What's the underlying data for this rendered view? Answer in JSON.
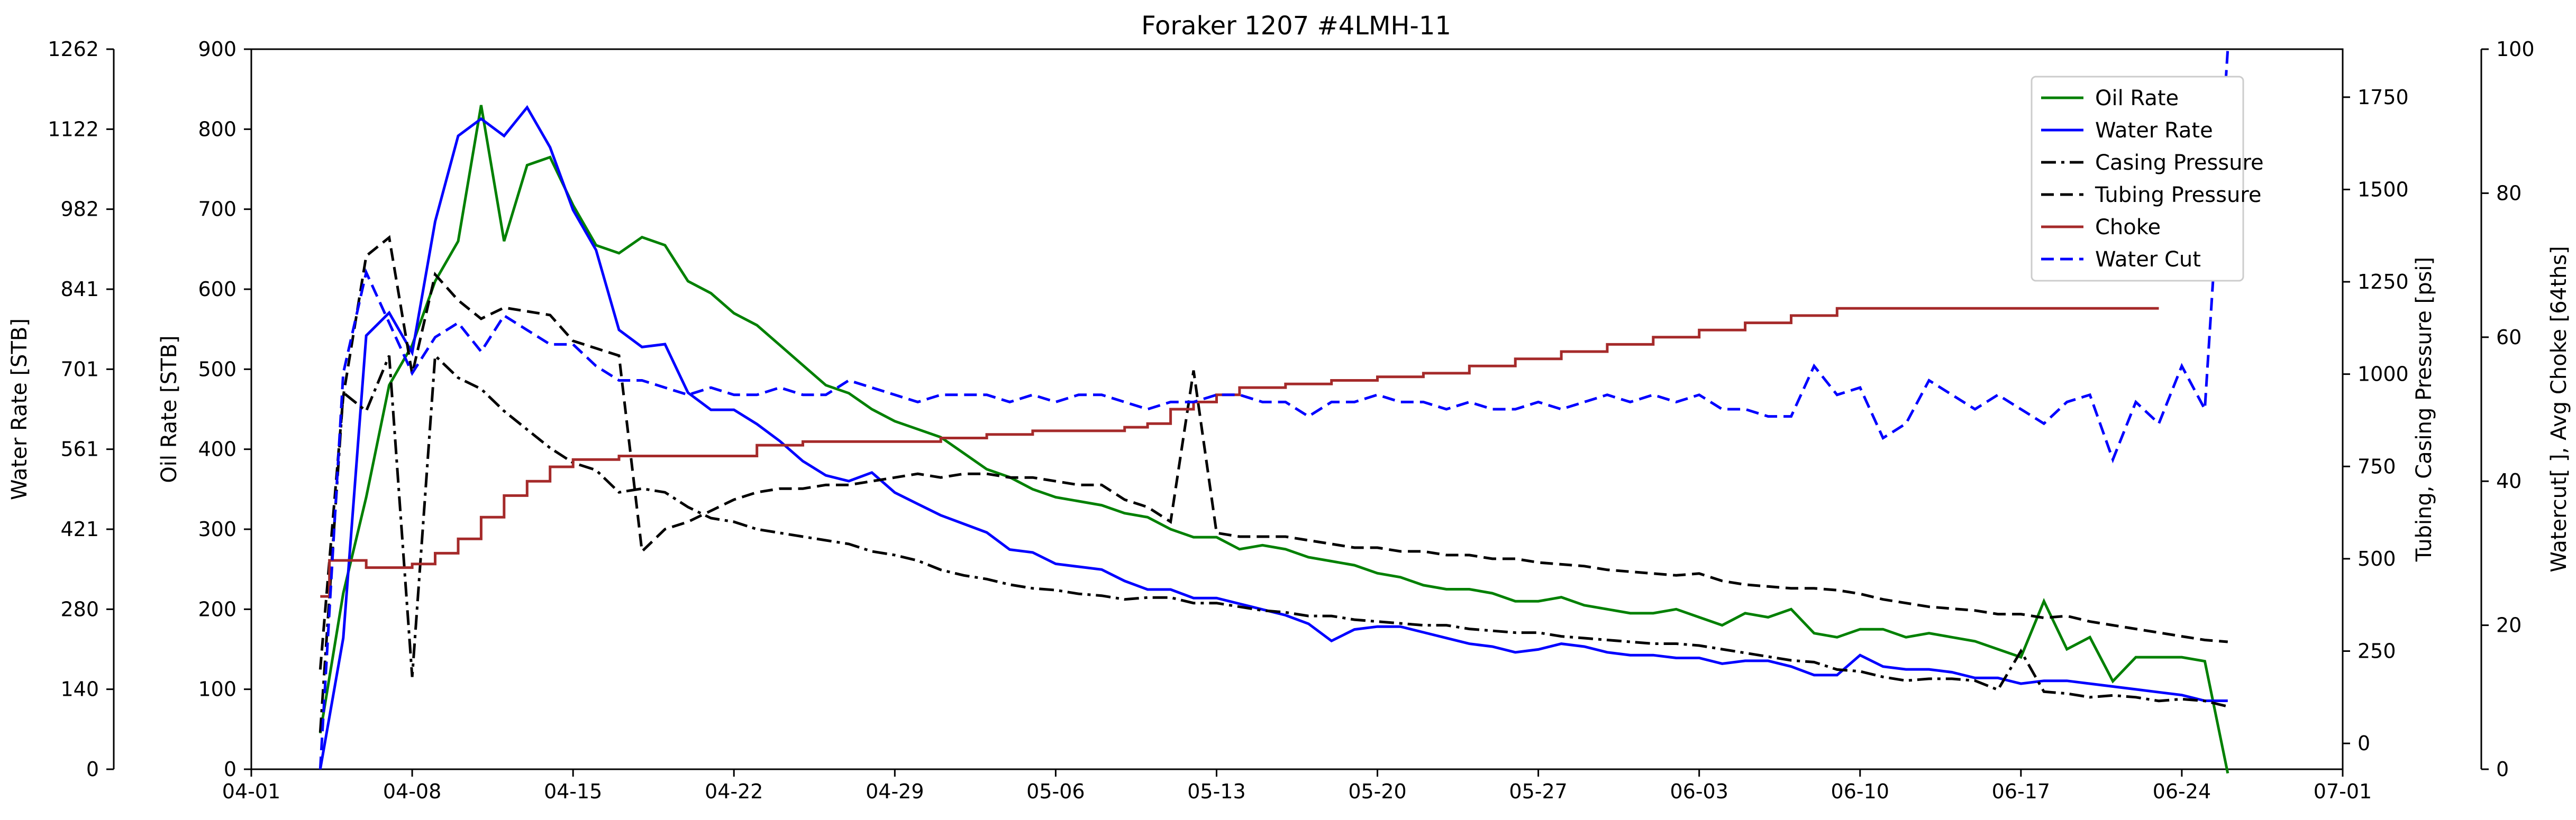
{
  "chart_data": {
    "type": "line",
    "title": "Foraker 1207 #4LMH-11",
    "x_axis": {
      "ticks": [
        "04-01",
        "04-08",
        "04-15",
        "04-22",
        "04-29",
        "05-06",
        "05-13",
        "05-20",
        "05-27",
        "06-03",
        "06-10",
        "06-17",
        "06-24",
        "07-01"
      ],
      "range_days": [
        -3,
        88
      ],
      "start_date": "2019-04-04"
    },
    "y_axes": [
      {
        "id": "water",
        "label": "Water Rate [STB]",
        "range": [
          0,
          1262
        ],
        "ticks": [
          "0",
          "140",
          "280",
          "421",
          "561",
          "701",
          "841",
          "982",
          "1122",
          "1262"
        ]
      },
      {
        "id": "oil",
        "label": "Oil Rate [STB]",
        "range": [
          0,
          900
        ],
        "ticks": [
          "0",
          "100",
          "200",
          "300",
          "400",
          "500",
          "600",
          "700",
          "800",
          "900"
        ]
      },
      {
        "id": "pressure",
        "label": "Tubing, Casing Pressure [psi]",
        "range": [
          -70,
          1880
        ],
        "ticks": [
          "0",
          "250",
          "500",
          "750",
          "1000",
          "1250",
          "1500",
          "1750"
        ]
      },
      {
        "id": "choke",
        "label": "Watercut[ ], Avg Choke [64ths]",
        "range": [
          0,
          100
        ],
        "ticks": [
          "0",
          "20",
          "40",
          "60",
          "80",
          "100"
        ]
      }
    ],
    "legend": {
      "placement": "top-right"
    },
    "grid": false,
    "series": [
      {
        "name": "Oil Rate",
        "axis": "oil",
        "color": "#008000",
        "dash": "solid",
        "x": [
          0,
          1,
          2,
          3,
          4,
          5,
          6,
          7,
          8,
          9,
          10,
          11,
          12,
          13,
          14,
          15,
          16,
          17,
          18,
          19,
          20,
          21,
          22,
          23,
          24,
          25,
          26,
          27,
          28,
          29,
          30,
          31,
          32,
          33,
          34,
          35,
          36,
          37,
          38,
          39,
          40,
          41,
          42,
          43,
          44,
          45,
          46,
          47,
          48,
          49,
          50,
          51,
          52,
          53,
          54,
          55,
          56,
          57,
          58,
          59,
          60,
          61,
          62,
          63,
          64,
          65,
          66,
          67,
          68,
          69,
          70,
          71,
          72,
          73,
          74,
          75,
          76,
          77,
          78,
          79,
          80,
          81,
          82,
          83
        ],
        "y": [
          45,
          220,
          340,
          480,
          530,
          610,
          660,
          830,
          660,
          755,
          765,
          705,
          655,
          645,
          665,
          655,
          610,
          595,
          570,
          555,
          530,
          505,
          480,
          470,
          450,
          435,
          425,
          415,
          395,
          375,
          365,
          350,
          340,
          335,
          330,
          320,
          315,
          300,
          290,
          290,
          275,
          280,
          275,
          265,
          260,
          255,
          245,
          240,
          230,
          225,
          225,
          220,
          210,
          210,
          215,
          205,
          200,
          195,
          195,
          200,
          190,
          180,
          195,
          190,
          200,
          170,
          165,
          175,
          175,
          165,
          170,
          165,
          160,
          150,
          140,
          210,
          150,
          165,
          110,
          140,
          140,
          140,
          135,
          -5
        ]
      },
      {
        "name": "Water Rate",
        "axis": "water",
        "color": "#0000ff",
        "dash": "solid",
        "x": [
          0,
          1,
          2,
          3,
          4,
          5,
          6,
          7,
          8,
          9,
          10,
          11,
          12,
          13,
          14,
          15,
          16,
          17,
          18,
          19,
          20,
          21,
          22,
          23,
          24,
          25,
          26,
          27,
          28,
          29,
          30,
          31,
          32,
          33,
          34,
          35,
          36,
          37,
          38,
          39,
          40,
          41,
          42,
          43,
          44,
          45,
          46,
          47,
          48,
          49,
          50,
          51,
          52,
          53,
          54,
          55,
          56,
          57,
          58,
          59,
          60,
          61,
          62,
          63,
          64,
          65,
          66,
          67,
          68,
          69,
          70,
          71,
          72,
          73,
          74,
          75,
          76,
          77,
          78,
          79,
          80,
          81,
          82,
          83
        ],
        "y": [
          0,
          230,
          760,
          800,
          730,
          960,
          1110,
          1140,
          1110,
          1160,
          1090,
          980,
          910,
          770,
          740,
          745,
          660,
          630,
          630,
          605,
          575,
          540,
          515,
          505,
          520,
          485,
          465,
          445,
          430,
          415,
          385,
          380,
          360,
          355,
          350,
          330,
          315,
          315,
          300,
          300,
          290,
          280,
          270,
          255,
          225,
          245,
          250,
          250,
          240,
          230,
          220,
          215,
          205,
          210,
          220,
          215,
          205,
          200,
          200,
          195,
          195,
          185,
          190,
          190,
          180,
          165,
          165,
          200,
          180,
          175,
          175,
          170,
          160,
          160,
          150,
          155,
          155,
          150,
          145,
          140,
          135,
          130,
          120,
          120
        ]
      },
      {
        "name": "Casing Pressure",
        "axis": "pressure",
        "color": "#000000",
        "dash": "dashdot",
        "x": [
          0,
          1,
          2,
          3,
          4,
          5,
          6,
          7,
          8,
          9,
          10,
          11,
          12,
          13,
          14,
          15,
          16,
          17,
          18,
          19,
          20,
          21,
          22,
          23,
          24,
          25,
          26,
          27,
          28,
          29,
          30,
          31,
          32,
          33,
          34,
          35,
          36,
          37,
          38,
          39,
          40,
          41,
          42,
          43,
          44,
          45,
          46,
          47,
          48,
          49,
          50,
          51,
          52,
          53,
          54,
          55,
          56,
          57,
          58,
          59,
          60,
          61,
          62,
          63,
          64,
          65,
          66,
          67,
          68,
          69,
          70,
          71,
          72,
          73,
          74,
          75,
          76,
          77,
          78,
          79,
          80,
          81,
          82,
          83
        ],
        "y": [
          30,
          950,
          900,
          1050,
          180,
          1050,
          990,
          960,
          900,
          850,
          800,
          760,
          740,
          680,
          690,
          680,
          640,
          610,
          600,
          580,
          570,
          560,
          550,
          540,
          520,
          510,
          495,
          470,
          455,
          445,
          430,
          420,
          415,
          405,
          400,
          390,
          395,
          395,
          380,
          380,
          370,
          360,
          355,
          345,
          345,
          335,
          330,
          325,
          320,
          320,
          310,
          305,
          300,
          300,
          290,
          285,
          280,
          275,
          270,
          270,
          265,
          255,
          245,
          235,
          225,
          220,
          200,
          195,
          180,
          170,
          175,
          175,
          170,
          145,
          250,
          140,
          135,
          125,
          130,
          125,
          115,
          120,
          115,
          100
        ]
      },
      {
        "name": "Tubing Pressure",
        "axis": "pressure",
        "color": "#000000",
        "dash": "dashed",
        "x": [
          0,
          1,
          2,
          3,
          4,
          5,
          6,
          7,
          8,
          9,
          10,
          11,
          12,
          13,
          14,
          15,
          16,
          17,
          18,
          19,
          20,
          21,
          22,
          23,
          24,
          25,
          26,
          27,
          28,
          29,
          30,
          31,
          32,
          33,
          34,
          35,
          36,
          37,
          38,
          39,
          40,
          41,
          42,
          43,
          44,
          45,
          46,
          47,
          48,
          49,
          50,
          51,
          52,
          53,
          54,
          55,
          56,
          57,
          58,
          59,
          60,
          61,
          62,
          63,
          64,
          65,
          66,
          67,
          68,
          69,
          70,
          71,
          72,
          73,
          74,
          75,
          76,
          77,
          78,
          79,
          80,
          81,
          82,
          83
        ],
        "y": [
          200,
          940,
          1320,
          1370,
          1000,
          1270,
          1200,
          1150,
          1180,
          1170,
          1160,
          1090,
          1070,
          1050,
          520,
          580,
          600,
          630,
          660,
          680,
          690,
          690,
          700,
          700,
          710,
          720,
          730,
          720,
          730,
          730,
          720,
          720,
          710,
          700,
          700,
          660,
          640,
          600,
          1010,
          570,
          560,
          560,
          560,
          550,
          540,
          530,
          530,
          520,
          520,
          510,
          510,
          500,
          500,
          490,
          485,
          480,
          470,
          465,
          460,
          455,
          460,
          440,
          430,
          425,
          420,
          420,
          415,
          405,
          390,
          380,
          370,
          365,
          360,
          350,
          350,
          340,
          345,
          330,
          320,
          310,
          300,
          290,
          280,
          275
        ]
      },
      {
        "name": "Choke",
        "axis": "choke",
        "color": "#a52a2a",
        "dash": "solid",
        "step": true,
        "x": [
          0,
          0.4,
          1,
          2,
          3,
          4,
          4.7,
          5,
          6,
          7,
          8,
          9,
          10,
          11,
          13,
          15,
          17,
          19,
          21,
          23,
          25,
          27,
          29,
          31,
          33,
          35,
          36,
          37,
          38,
          39,
          40,
          42,
          44,
          46,
          48,
          50,
          52,
          54,
          56,
          58,
          60,
          62,
          64,
          66,
          68,
          70,
          72,
          74,
          76,
          78,
          80
        ],
        "y": [
          24,
          29,
          29,
          28,
          28,
          28.5,
          28.5,
          30,
          32,
          35,
          38,
          40,
          42,
          43,
          43.5,
          43.5,
          43.5,
          45,
          45.5,
          45.5,
          45.5,
          46,
          46.5,
          47,
          47,
          47.5,
          48,
          50,
          51,
          52,
          53,
          53.5,
          54,
          54.5,
          55,
          56,
          57,
          58,
          59,
          60,
          61,
          62,
          63,
          64,
          64,
          64,
          64,
          64,
          64,
          64,
          64
        ]
      },
      {
        "name": "Water Cut",
        "axis": "choke",
        "color": "#0000ff",
        "dash": "dashed",
        "x": [
          0,
          1,
          2,
          3,
          4,
          5,
          6,
          7,
          8,
          9,
          10,
          11,
          12,
          13,
          14,
          15,
          16,
          17,
          18,
          19,
          20,
          21,
          22,
          23,
          24,
          25,
          26,
          27,
          28,
          29,
          30,
          31,
          32,
          33,
          34,
          35,
          36,
          37,
          38,
          39,
          40,
          41,
          42,
          43,
          44,
          45,
          46,
          47,
          48,
          49,
          50,
          51,
          52,
          53,
          54,
          55,
          56,
          57,
          58,
          59,
          60,
          61,
          62,
          63,
          64,
          65,
          66,
          67,
          68,
          69,
          70,
          71,
          72,
          73,
          74,
          75,
          76,
          77,
          78,
          79,
          80,
          81,
          82,
          83
        ],
        "y": [
          0,
          55,
          69,
          62,
          55,
          60,
          62,
          58,
          63,
          61,
          59,
          59,
          56,
          54,
          54,
          53,
          52,
          53,
          52,
          52,
          53,
          52,
          52,
          54,
          53,
          52,
          51,
          52,
          52,
          52,
          51,
          52,
          51,
          52,
          52,
          51,
          50,
          51,
          51,
          52,
          52,
          51,
          51,
          49,
          51,
          51,
          52,
          51,
          51,
          50,
          51,
          50,
          50,
          51,
          50,
          51,
          52,
          51,
          52,
          51,
          52,
          50,
          50,
          49,
          49,
          56,
          52,
          53,
          46,
          48,
          54,
          52,
          50,
          52,
          50,
          48,
          51,
          52,
          43,
          51,
          48,
          56,
          50,
          100
        ]
      }
    ]
  }
}
